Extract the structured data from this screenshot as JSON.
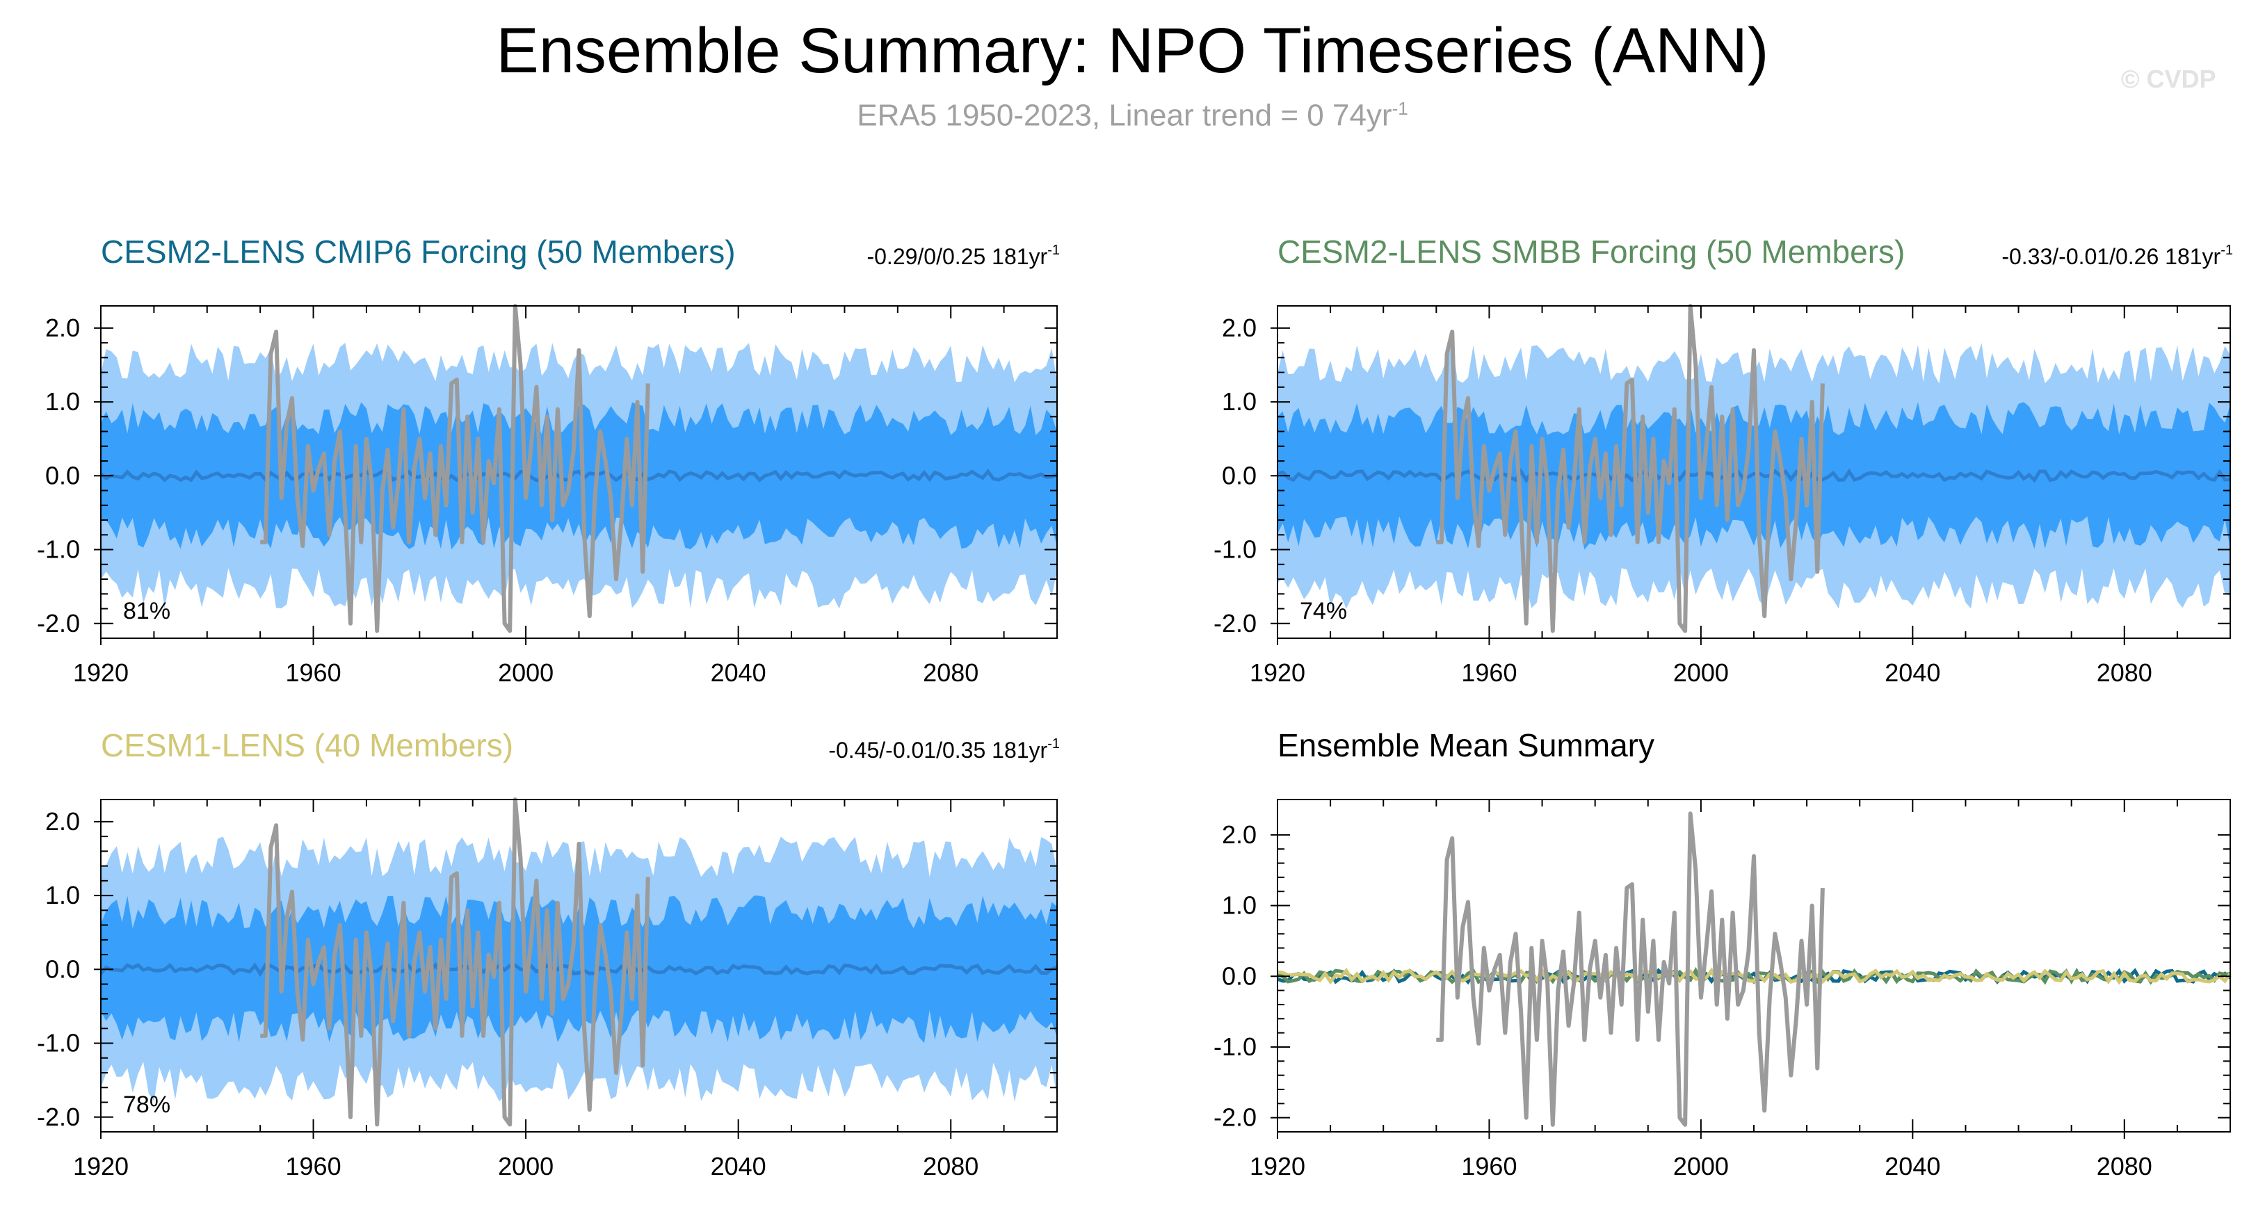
{
  "title": "Ensemble Summary: NPO Timeseries (ANN)",
  "subtitle": {
    "text": "ERA5 1950-2023, Linear trend = 0 74yr",
    "superscript": "-1"
  },
  "watermark": "© CVDP",
  "colors": {
    "outer_band": "#9dcdfa",
    "inner_band": "#38a0fa",
    "ensemble_mean": "#2f7fd0",
    "observation": "#9b9b9b",
    "cmip6_title": "#0f6a8c",
    "smbb_title": "#5b8f5f",
    "cesm1_title": "#d2c774",
    "axis": "#000000"
  },
  "axis": {
    "x_range": [
      1920,
      2100
    ],
    "x_ticks": [
      "1920",
      "1960",
      "2000",
      "2040",
      "2080"
    ],
    "y_ticks": [
      "2.0",
      "1.0",
      "0.0",
      "-1.0",
      "-2.0"
    ],
    "summary_y_ticks": [
      "2.0",
      "1.0",
      "0.0",
      "-1.0",
      "-2.0"
    ]
  },
  "panels": [
    {
      "title": "CESM2-LENS CMIP6 Forcing (50 Members)",
      "title_color": "#0f6a8c",
      "stats": "-0.29/0/0.25 181yr",
      "stats_sup": "-1",
      "percent": "81%",
      "y_range": [
        -2.2,
        2.3
      ],
      "seed": 11
    },
    {
      "title": "CESM2-LENS SMBB Forcing (50 Members)",
      "title_color": "#5b8f5f",
      "stats": "-0.33/-0.01/0.26 181yr",
      "stats_sup": "-1",
      "percent": "74%",
      "y_range": [
        -2.2,
        2.3
      ],
      "seed": 23
    },
    {
      "title": "CESM1-LENS (40 Members)",
      "title_color": "#d2c774",
      "stats": "-0.45/-0.01/0.35 181yr",
      "stats_sup": "-1",
      "percent": "78%",
      "y_range": [
        -2.2,
        2.3
      ],
      "seed": 37
    },
    {
      "title": "Ensemble Mean Summary",
      "title_color": "#000000",
      "stats": "",
      "stats_sup": "",
      "percent": "",
      "y_range": [
        -2.2,
        2.5
      ],
      "seed": 53
    }
  ],
  "chart_data": {
    "type": "line",
    "title": "Ensemble Summary: NPO Timeseries (ANN)",
    "subtitle": "ERA5 1950-2023, Linear trend = 0 74yr-1",
    "xlim": [
      1920,
      2100
    ],
    "observation": {
      "x": [
        1950,
        1951,
        1952,
        1953,
        1954,
        1955,
        1956,
        1957,
        1958,
        1959,
        1960,
        1961,
        1962,
        1963,
        1964,
        1965,
        1966,
        1967,
        1968,
        1969,
        1970,
        1971,
        1972,
        1973,
        1974,
        1975,
        1976,
        1977,
        1978,
        1979,
        1980,
        1981,
        1982,
        1983,
        1984,
        1985,
        1986,
        1987,
        1988,
        1989,
        1990,
        1991,
        1992,
        1993,
        1994,
        1995,
        1996,
        1997,
        1998,
        1999,
        2000,
        2001,
        2002,
        2003,
        2004,
        2005,
        2006,
        2007,
        2008,
        2009,
        2010,
        2011,
        2012,
        2013,
        2014,
        2015,
        2016,
        2017,
        2018,
        2019,
        2020,
        2021,
        2022,
        2023
      ],
      "y": [
        -0.9,
        -0.9,
        1.65,
        1.95,
        -0.3,
        0.7,
        1.05,
        -0.3,
        -0.95,
        0.4,
        -0.2,
        0.1,
        0.3,
        -0.8,
        0.2,
        0.6,
        -0.5,
        -2.0,
        0.4,
        -0.9,
        0.5,
        -0.1,
        -2.1,
        -0.2,
        0.35,
        -0.7,
        -0.1,
        0.9,
        -0.9,
        0.1,
        0.5,
        -0.3,
        0.3,
        -0.8,
        0.4,
        -0.4,
        1.25,
        1.3,
        -0.9,
        0.8,
        -0.5,
        0.5,
        -0.9,
        0.2,
        -0.1,
        0.9,
        -2.0,
        -2.1,
        2.3,
        1.5,
        -0.3,
        0.4,
        1.2,
        -0.4,
        0.8,
        -0.6,
        0.9,
        -0.4,
        -0.2,
        0.35,
        1.7,
        -0.8,
        -1.9,
        -0.3,
        0.6,
        0.2,
        -0.3,
        -1.4,
        -0.6,
        0.5,
        -0.4,
        1.0,
        -1.3,
        1.25
      ]
    },
    "panels": [
      {
        "name": "CESM2-LENS CMIP6 Forcing (50 Members)",
        "ensemble_mean_approx": 0.0,
        "inner_band_approx": [
          -0.75,
          0.75
        ],
        "outer_band_approx": [
          -1.5,
          1.4
        ],
        "trend_min_mean_max": [
          -0.29,
          0.0,
          0.25
        ],
        "trend_units": "181yr-1",
        "percent": "81%"
      },
      {
        "name": "CESM2-LENS SMBB Forcing (50 Members)",
        "ensemble_mean_approx": 0.0,
        "inner_band_approx": [
          -0.75,
          0.75
        ],
        "outer_band_approx": [
          -1.5,
          1.4
        ],
        "trend_min_mean_max": [
          -0.33,
          -0.01,
          0.26
        ],
        "trend_units": "181yr-1",
        "percent": "74%"
      },
      {
        "name": "CESM1-LENS (40 Members)",
        "ensemble_mean_approx": 0.0,
        "inner_band_approx": [
          -0.75,
          0.75
        ],
        "outer_band_approx": [
          -1.5,
          1.4
        ],
        "trend_min_mean_max": [
          -0.45,
          -0.01,
          0.35
        ],
        "trend_units": "181yr-1",
        "percent": "78%"
      },
      {
        "name": "Ensemble Mean Summary",
        "ensemble_mean_approx": 0.0,
        "series": [
          "CESM2-LENS CMIP6 Forcing",
          "CESM2-LENS SMBB Forcing",
          "CESM1-LENS"
        ]
      }
    ]
  }
}
